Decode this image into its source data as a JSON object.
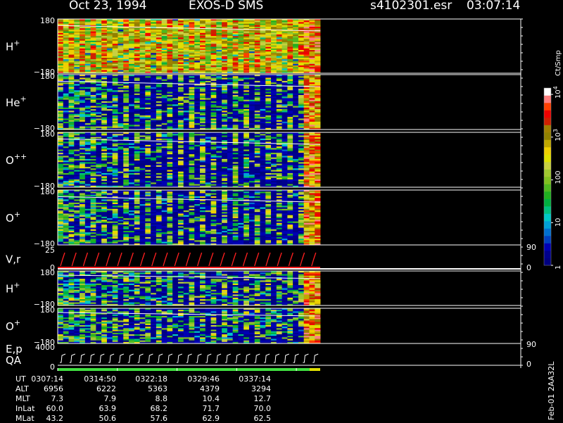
{
  "header": {
    "date": "Oct 23, 1994",
    "instrument": "EXOS-D SMS",
    "file": "s4102301.esr",
    "time": "03:07:14"
  },
  "colorbar": {
    "unit": "Ct/Smp",
    "ticks": [
      "1",
      "10",
      "100",
      "10",
      "10"
    ],
    "tick_exponents": [
      "",
      "",
      "",
      "3",
      "4"
    ],
    "tick_values": [
      1,
      10,
      100,
      1000,
      10000
    ],
    "colors": [
      "#000080",
      "#00008c",
      "#0000b4",
      "#0040c0",
      "#0070d0",
      "#00a0d8",
      "#00c8c8",
      "#00c080",
      "#00b040",
      "#20b020",
      "#50b820",
      "#80c020",
      "#a0c830",
      "#c8d040",
      "#e0e000",
      "#f0d000",
      "#c0a800",
      "#908000",
      "#a08000",
      "#d02000",
      "#f00000",
      "#ff4000",
      "#ff8080",
      "#ffffff"
    ]
  },
  "chart_data": {
    "type": "heatmap",
    "panels": [
      {
        "label": "H",
        "superscript": "+",
        "y_top": "180",
        "y_bottom": "−180",
        "ylim": [
          -180,
          180
        ],
        "base_intensity": 0.58,
        "data_end_fraction": 1.0
      },
      {
        "label": "He",
        "superscript": "+",
        "y_top": "180",
        "y_bottom": "−180",
        "ylim": [
          -180,
          180
        ],
        "base_intensity": 0.12,
        "data_end_fraction": 1.0
      },
      {
        "label": "O",
        "superscript": "++",
        "y_top": "180",
        "y_bottom": "−180",
        "ylim": [
          -180,
          180
        ],
        "base_intensity": 0.1,
        "data_end_fraction": 1.0
      },
      {
        "label": "O",
        "superscript": "+",
        "y_top": "180",
        "y_bottom": "−180",
        "ylim": [
          -180,
          180
        ],
        "base_intensity": 0.12,
        "data_end_fraction": 1.0
      },
      {
        "label": "V,r",
        "superscript": "",
        "y_top": "25",
        "y_bottom": "0",
        "ylim": [
          0,
          25
        ],
        "right_top": "90",
        "right_bottom": "0",
        "kind": "vr"
      },
      {
        "label": "H",
        "superscript": "+",
        "y_top": "180",
        "y_bottom": "−180",
        "ylim": [
          -180,
          180
        ],
        "base_intensity": 0.22,
        "data_end_fraction": 1.0
      },
      {
        "label": "O",
        "superscript": "+",
        "y_top": "180",
        "y_bottom": "−180",
        "ylim": [
          -180,
          180
        ],
        "base_intensity": 0.18,
        "data_end_fraction": 1.0
      },
      {
        "label": "E,p",
        "label2": "QA",
        "superscript": "",
        "y_top": "4000",
        "y_bottom": "0",
        "ylim": [
          0,
          4000
        ],
        "right_top": "90",
        "right_bottom": "0",
        "kind": "ep"
      }
    ],
    "x_ticks": [
      "0307:14",
      "0314:50",
      "0322:18",
      "0329:46",
      "0337:14"
    ],
    "data_columns": 48,
    "sweep_count": 23
  },
  "table": {
    "rows": [
      {
        "label": "UT",
        "values": [
          "0307:14",
          "0314:50",
          "0322:18",
          "0329:46",
          "0337:14"
        ]
      },
      {
        "label": "ALT",
        "values": [
          "6956",
          "6222",
          "5363",
          "4379",
          "3294"
        ]
      },
      {
        "label": "MLT",
        "values": [
          "7.3",
          "7.9",
          "8.8",
          "10.4",
          "12.7"
        ]
      },
      {
        "label": "InLat",
        "values": [
          "60.0",
          "63.9",
          "68.2",
          "71.7",
          "70.0"
        ]
      },
      {
        "label": "MLat",
        "values": [
          "43.2",
          "50.6",
          "57.6",
          "62.9",
          "62.5"
        ]
      }
    ]
  },
  "footer": {
    "date_code": "Feb-01",
    "version": "2AA32L"
  }
}
